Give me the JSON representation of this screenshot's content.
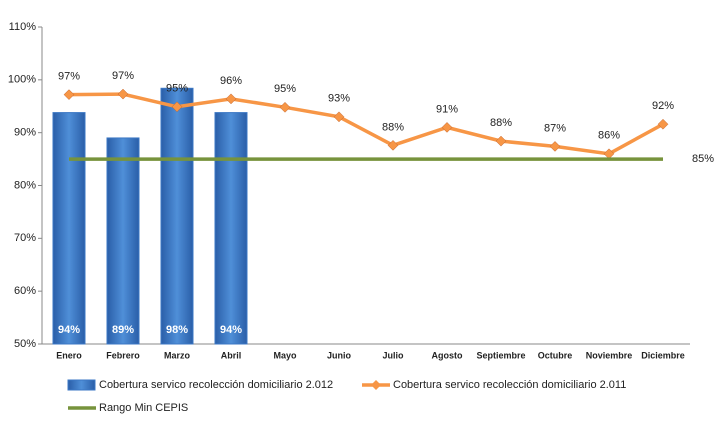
{
  "chart_data": {
    "type": "bar",
    "categories": [
      "Enero",
      "Febrero",
      "Marzo",
      "Abril",
      "Mayo",
      "Junio",
      "Julio",
      "Agosto",
      "Septiembre",
      "Octubre",
      "Noviembre",
      "Diciembre"
    ],
    "ylim": [
      50,
      110
    ],
    "yticks": [
      {
        "value": 50,
        "label": "50%"
      },
      {
        "value": 60,
        "label": "60%"
      },
      {
        "value": 70,
        "label": "70%"
      },
      {
        "value": 80,
        "label": "80%"
      },
      {
        "value": 90,
        "label": "90%"
      },
      {
        "value": 100,
        "label": "100%"
      },
      {
        "value": 110,
        "label": "110%"
      }
    ],
    "grid": false,
    "series": [
      {
        "name": "Cobertura servico recolección domiciliario 2.012",
        "type": "bar",
        "color": "#3b77c4",
        "values": [
          93.8,
          89,
          98.4,
          93.8,
          null,
          null,
          null,
          null,
          null,
          null,
          null,
          null
        ],
        "value_labels": [
          "94%",
          "89%",
          "98%",
          "94%",
          null,
          null,
          null,
          null,
          null,
          null,
          null,
          null
        ]
      },
      {
        "name": "Cobertura servico recolección domiciliario 2.011",
        "type": "line",
        "color": "#f79646",
        "values": [
          97.2,
          97.3,
          94.9,
          96.4,
          94.8,
          93.0,
          87.6,
          91.0,
          88.4,
          87.4,
          86.0,
          91.6
        ],
        "value_labels": [
          "97%",
          "97%",
          "95%",
          "96%",
          "95%",
          "93%",
          "88%",
          "91%",
          "88%",
          "87%",
          "86%",
          "92%"
        ]
      },
      {
        "name": "Rango Min CEPIS",
        "type": "line",
        "color": "#77933c",
        "values": [
          85,
          85,
          85,
          85,
          85,
          85,
          85,
          85,
          85,
          85,
          85,
          85
        ],
        "value_labels": [
          null,
          null,
          null,
          null,
          null,
          null,
          null,
          null,
          null,
          null,
          null,
          "85%"
        ]
      }
    ]
  }
}
